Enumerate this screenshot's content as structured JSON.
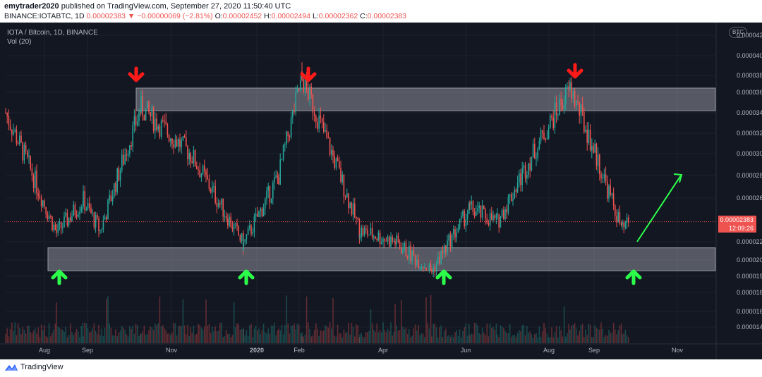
{
  "header": {
    "author": "emytrader2020",
    "published_text": "published on TradingView.com, September 27, 2020 11:50:40 UTC",
    "symbol": "BINANCE:IOTABTC, 1D",
    "last_price": "0.00002383",
    "change": "−0.00000069 (−2.81%)",
    "o_label": "O:",
    "o_value": "0.00002452",
    "h_label": "H:",
    "h_value": "0.00002494",
    "l_label": "L:",
    "l_value": "0.00002362",
    "c_label": "C:",
    "c_value": "0.00002383"
  },
  "legend": {
    "title": "IOTA / Bitcoin, 1D, BINANCE",
    "volume": "Vol (20)"
  },
  "axis": {
    "currency_badge": "BTC",
    "price_tag": "0.00002383",
    "countdown": "12:09:26"
  },
  "footer": {
    "brand": "TradingView"
  },
  "colors": {
    "background": "#131722",
    "up": "#26a69a",
    "down": "#ef5350",
    "zone": "#b2b5be",
    "red_arrow": "#ff1a1a",
    "green_arrow": "#2bff4a"
  },
  "chart_data": {
    "type": "candlestick",
    "price_axis": {
      "ticks": [
        "0.00004200",
        "0.00004000",
        "0.00003800",
        "0.00003600",
        "0.00003400",
        "0.00003200",
        "0.00003000",
        "0.00002800",
        "0.00002600",
        "0.00002200",
        "0.00002050",
        "0.00001900",
        "0.00001800",
        "0.00001600",
        "0.00001460"
      ],
      "scale": "log"
    },
    "time_axis": {
      "ticks": [
        "Aug",
        "Sep",
        "Nov",
        "2020",
        "Feb",
        "Apr",
        "Jun",
        "Aug",
        "Sep",
        "Nov"
      ]
    },
    "price_series_key_points": [
      {
        "date": "Jul 2019",
        "close": 3.4e-05
      },
      {
        "date": "Aug 2019",
        "close": 2.28e-05
      },
      {
        "date": "Aug 2019",
        "close": 2.58e-05
      },
      {
        "date": "Sep 2019",
        "close": 2.3e-05
      },
      {
        "date": "Oct 2019",
        "close": 3.45e-05
      },
      {
        "date": "Nov 2019",
        "close": 3e-05
      },
      {
        "date": "Dec 2019",
        "close": 2.18e-05
      },
      {
        "date": "Jan 2020",
        "close": 2.8e-05
      },
      {
        "date": "Feb 2020",
        "close": 3.75e-05
      },
      {
        "date": "Mar 2020",
        "close": 2.3e-05
      },
      {
        "date": "Apr 2020",
        "close": 2.2e-05
      },
      {
        "date": "May 2020",
        "close": 1.95e-05
      },
      {
        "date": "Jun 2020",
        "close": 2.5e-05
      },
      {
        "date": "Jul 2020",
        "close": 2.38e-05
      },
      {
        "date": "Aug 2020",
        "close": 3.65e-05
      },
      {
        "date": "Sep 2020",
        "close": 2.3e-05
      },
      {
        "date": "Sep 2020",
        "close": 2.38e-05
      }
    ],
    "zones": [
      {
        "role": "resistance",
        "from": 3.42e-05,
        "to": 3.65e-05
      },
      {
        "role": "support",
        "from": 1.95e-05,
        "to": 2.15e-05
      }
    ],
    "red_arrows": [
      "Oct 2019",
      "Feb 2020",
      "Aug 2020"
    ],
    "green_arrows": [
      "Aug 2019",
      "Dec 2019",
      "May 2020",
      "Sep 2020"
    ],
    "projection_arrow": {
      "from": 2.2e-05,
      "to": 2.8e-05
    }
  }
}
